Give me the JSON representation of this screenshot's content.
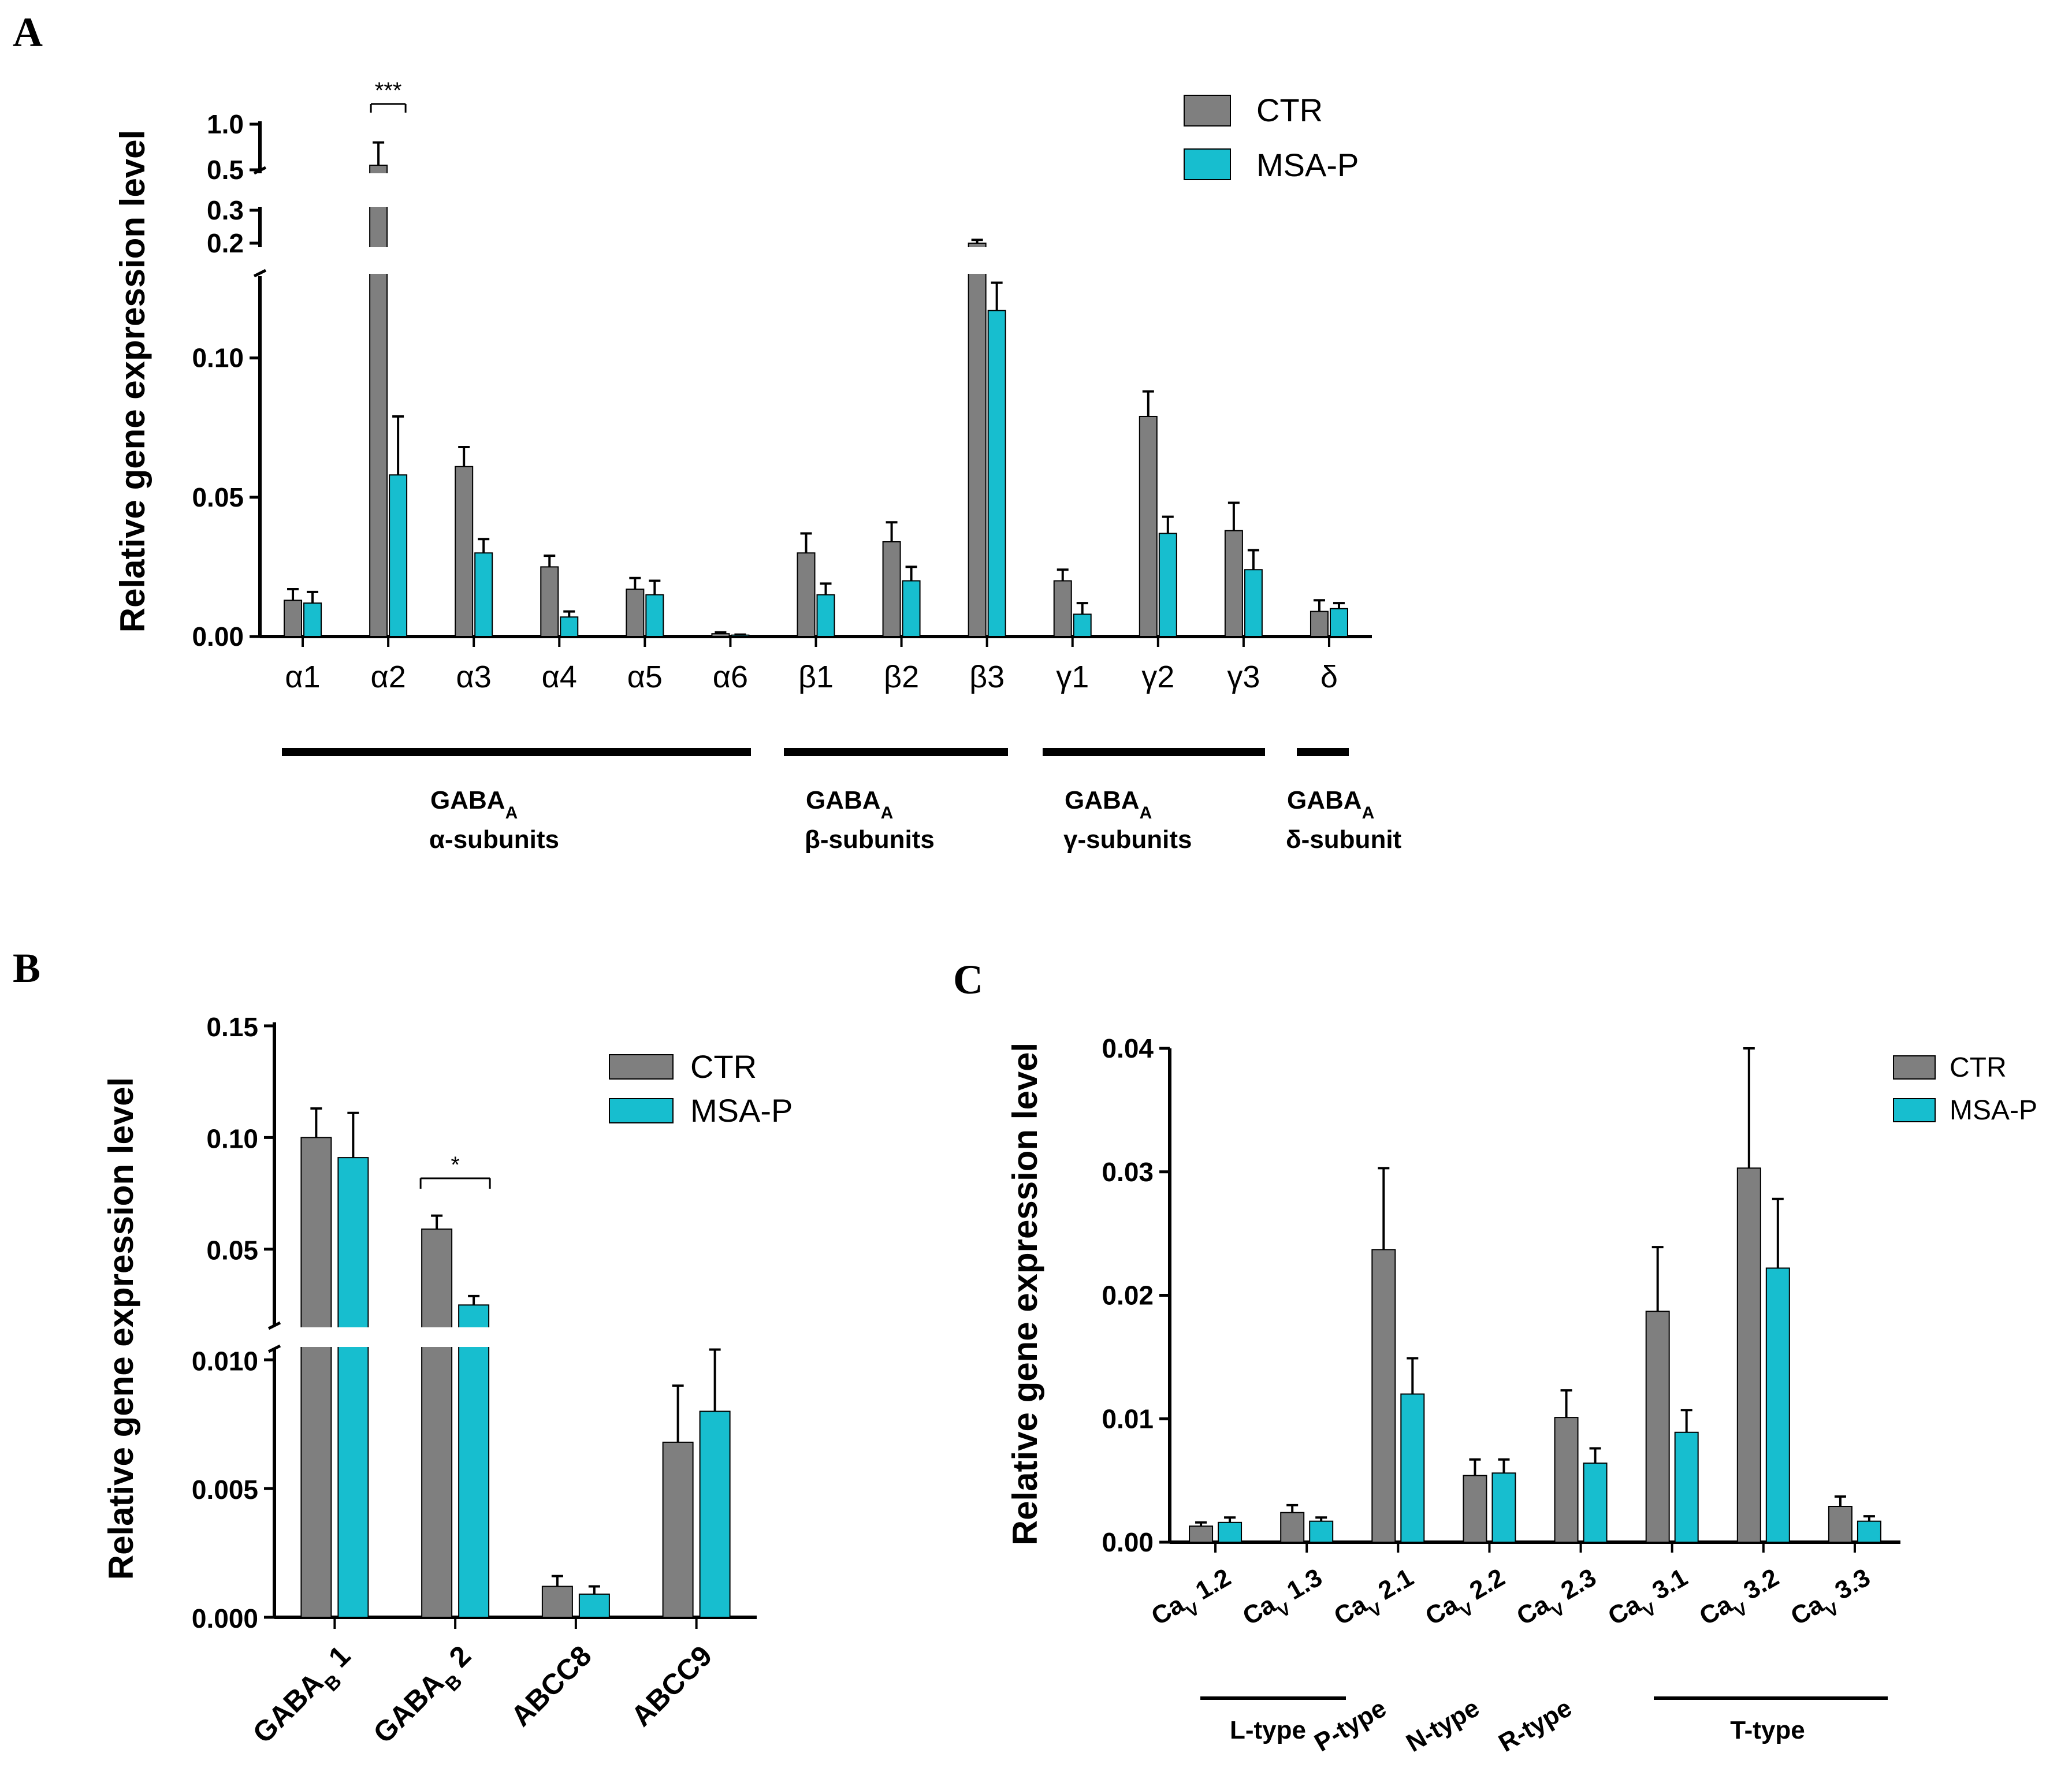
{
  "colors": {
    "ctr": "#7f7f7f",
    "msa": "#17becf",
    "axis": "#000000"
  },
  "chart_data": [
    {
      "panel": "A",
      "type": "bar",
      "ylabel": "Relative gene expression level",
      "y_ticks_lower": [
        "0.00",
        "0.05",
        "0.10"
      ],
      "y_ticks_upper": [
        "0.2",
        "0.3",
        "0.5",
        "1.0"
      ],
      "ylim_lower": [
        0,
        0.13
      ],
      "categories": [
        "α1",
        "α2",
        "α3",
        "α4",
        "α5",
        "α6",
        "β1",
        "β2",
        "β3",
        "γ1",
        "γ2",
        "γ3",
        "δ"
      ],
      "series": [
        {
          "name": "CTR",
          "values": [
            0.013,
            0.55,
            0.061,
            0.025,
            0.017,
            0.001,
            0.03,
            0.034,
            0.19,
            0.02,
            0.079,
            0.038,
            0.009
          ],
          "errors": [
            0.004,
            0.25,
            0.007,
            0.004,
            0.004,
            0.0005,
            0.007,
            0.007,
            0.02,
            0.004,
            0.009,
            0.01,
            0.004
          ]
        },
        {
          "name": "MSA-P",
          "values": [
            0.012,
            0.058,
            0.03,
            0.007,
            0.015,
            0.0005,
            0.015,
            0.02,
            0.117,
            0.008,
            0.037,
            0.024,
            0.01
          ],
          "errors": [
            0.004,
            0.021,
            0.005,
            0.002,
            0.005,
            0.0002,
            0.004,
            0.005,
            0.01,
            0.004,
            0.006,
            0.007,
            0.002
          ]
        }
      ],
      "significance": [
        {
          "category": "α2",
          "label": "***"
        }
      ],
      "groups": [
        {
          "line1": "GABA",
          "sub": "A",
          "line2": "α-subunits"
        },
        {
          "line1": "GABA",
          "sub": "A",
          "line2": "β-subunits"
        },
        {
          "line1": "GABA",
          "sub": "A",
          "line2": "γ-subunits"
        },
        {
          "line1": "GABA",
          "sub": "A",
          "line2": "δ-subunit"
        }
      ],
      "legend": [
        "CTR",
        "MSA-P"
      ]
    },
    {
      "panel": "B",
      "type": "bar",
      "ylabel": "Relative gene expression level",
      "y_ticks_lower": [
        "0.000",
        "0.005",
        "0.010"
      ],
      "y_ticks_upper": [
        "0.05",
        "0.10",
        "0.15"
      ],
      "categories": [
        {
          "main": "GABA",
          "sub": "B",
          "rest": " 1"
        },
        {
          "main": "GABA",
          "sub": "B",
          "rest": " 2"
        },
        {
          "main": "ABCC8",
          "sub": "",
          "rest": ""
        },
        {
          "main": "ABCC9",
          "sub": "",
          "rest": ""
        }
      ],
      "series": [
        {
          "name": "CTR",
          "values": [
            0.1,
            0.059,
            0.0012,
            0.0068
          ],
          "errors": [
            0.013,
            0.006,
            0.0004,
            0.0022
          ]
        },
        {
          "name": "MSA-P",
          "values": [
            0.091,
            0.025,
            0.0009,
            0.008
          ],
          "errors": [
            0.02,
            0.004,
            0.0003,
            0.0024
          ]
        }
      ],
      "significance": [
        {
          "category": "GABAB 2",
          "label": "*"
        }
      ],
      "legend": [
        "CTR",
        "MSA-P"
      ]
    },
    {
      "panel": "C",
      "type": "bar",
      "ylabel": "Relative gene expression level",
      "y_ticks": [
        "0.00",
        "0.01",
        "0.02",
        "0.03",
        "0.04"
      ],
      "ylim": [
        0,
        0.04
      ],
      "categories": [
        {
          "main": "Ca",
          "sub": "V",
          "rest": " 1.2"
        },
        {
          "main": "Ca",
          "sub": "V",
          "rest": " 1.3"
        },
        {
          "main": "Ca",
          "sub": "V",
          "rest": " 2.1"
        },
        {
          "main": "Ca",
          "sub": "V",
          "rest": " 2.2"
        },
        {
          "main": "Ca",
          "sub": "V",
          "rest": " 2.3"
        },
        {
          "main": "Ca",
          "sub": "V",
          "rest": " 3.1"
        },
        {
          "main": "Ca",
          "sub": "V",
          "rest": " 3.2"
        },
        {
          "main": "Ca",
          "sub": "V",
          "rest": " 3.3"
        }
      ],
      "series": [
        {
          "name": "CTR",
          "values": [
            0.0013,
            0.0024,
            0.0237,
            0.0054,
            0.0101,
            0.0187,
            0.0303,
            0.0029
          ],
          "errors": [
            0.0003,
            0.0006,
            0.0066,
            0.0013,
            0.0022,
            0.0052,
            0.0097,
            0.0008
          ]
        },
        {
          "name": "MSA-P",
          "values": [
            0.0016,
            0.0017,
            0.012,
            0.0056,
            0.0064,
            0.0089,
            0.0222,
            0.0017
          ],
          "errors": [
            0.0004,
            0.0003,
            0.0029,
            0.0011,
            0.0012,
            0.0018,
            0.0056,
            0.0004
          ]
        }
      ],
      "groups": [
        "L-type",
        "P-type",
        "N-type",
        "R-type",
        "T-type"
      ],
      "legend": [
        "CTR",
        "MSA-P"
      ]
    }
  ],
  "panels": {
    "a": "A",
    "b": "B",
    "c": "C"
  }
}
